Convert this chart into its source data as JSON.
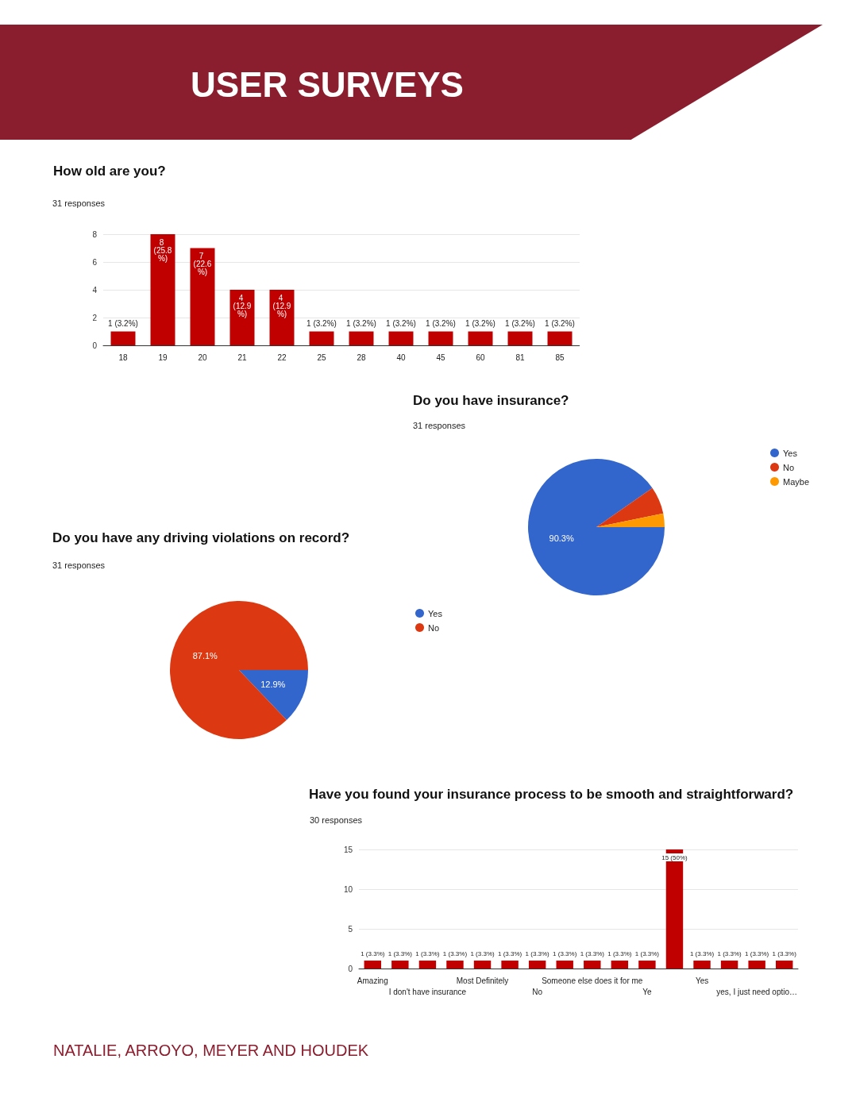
{
  "chart_data": [
    {
      "type": "bar",
      "title": "How old are you?",
      "subtitle": "31 responses",
      "annotations": [
        "USER SURVEYS"
      ],
      "categories": [
        "18",
        "19",
        "20",
        "21",
        "22",
        "25",
        "28",
        "40",
        "45",
        "60",
        "81",
        "85"
      ],
      "values": [
        1,
        8,
        7,
        4,
        4,
        1,
        1,
        1,
        1,
        1,
        1,
        1
      ],
      "value_labels": [
        "1 (3.2%)",
        "8 (25.8%)",
        "7 (22.6%)",
        "4 (12.9%)",
        "4 (12.9%)",
        "1 (3.2%)",
        "1 (3.2%)",
        "1 (3.2%)",
        "1 (3.2%)",
        "1 (3.2%)",
        "1 (3.2%)",
        "1 (3.2%)"
      ],
      "color": "#c00000",
      "ylim": [
        0,
        8
      ],
      "yticks": [
        0,
        2,
        4,
        6,
        8
      ],
      "grid": "y"
    },
    {
      "type": "pie",
      "title": "Do you have insurance?",
      "subtitle": "31 responses",
      "categories": [
        "Yes",
        "No",
        "Maybe"
      ],
      "values": [
        90.3,
        6.5,
        3.2
      ],
      "colors": [
        "#3366cc",
        "#dc3912",
        "#ff9900"
      ],
      "value_labels": [
        "90.3%",
        null,
        null
      ],
      "legend": "right"
    },
    {
      "type": "pie",
      "title": "Do you have any driving violations on record?",
      "subtitle": "31 responses",
      "categories": [
        "Yes",
        "No"
      ],
      "values": [
        12.9,
        87.1
      ],
      "colors": [
        "#3366cc",
        "#dc3912"
      ],
      "value_labels": [
        "12.9%",
        "87.1%"
      ],
      "legend": "right"
    },
    {
      "type": "bar",
      "title": "Have you found your insurance process to be smooth and straightforward?",
      "subtitle": "30 responses",
      "annotations": [
        "NATALIE, ARROYO, MEYER AND HOUDEK"
      ],
      "categories": [
        "Amazing",
        null,
        "I don't have insurance",
        null,
        "Most Definitely",
        null,
        "No",
        null,
        "Someone else does it for me",
        null,
        "Ye",
        null,
        "Yes",
        null,
        "yes, I just need optio…",
        null
      ],
      "values": [
        1,
        1,
        1,
        1,
        1,
        1,
        1,
        1,
        1,
        1,
        1,
        15,
        1,
        1,
        1,
        1
      ],
      "value_labels": [
        "1 (3.3%)",
        "1 (3.3%)",
        "1 (3.3%)",
        "1 (3.3%)",
        "1 (3.3%)",
        "1 (3.3%)",
        "1 (3.3%)",
        "1 (3.3%)",
        "1 (3.3%)",
        "1 (3.3%)",
        "1 (3.3%)",
        "15 (50%)",
        "1 (3.3%)",
        "1 (3.3%)",
        "1 (3.3%)",
        "1 (3.3%)"
      ],
      "color": "#c00000",
      "ylim": [
        0,
        15
      ],
      "yticks": [
        0,
        5,
        10,
        15
      ],
      "grid": "y"
    }
  ]
}
